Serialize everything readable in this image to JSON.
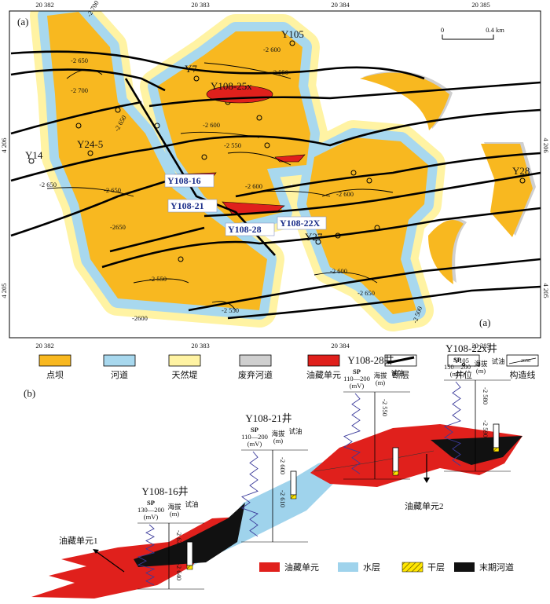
{
  "map": {
    "panel_label": "(a)",
    "corner_label": "(a)",
    "x_coords_top": [
      "20 382",
      "20 383",
      "20 384",
      "20 385"
    ],
    "x_coords_bottom": [
      "20 382",
      "20 383",
      "20 384",
      "20 385"
    ],
    "y_coords_left": [
      "4 206",
      "4 205"
    ],
    "y_coords_right": [
      "4 206",
      "4 205"
    ],
    "scale": {
      "start": "0",
      "end": "0.4 km"
    },
    "wells": [
      "Y105",
      "Y7",
      "Y108-25x",
      "Y24-5",
      "Y14",
      "Y28",
      "Y27"
    ],
    "key_wells": [
      "Y108-16",
      "Y108-21",
      "Y108-28",
      "Y108-22X"
    ],
    "contours": [
      "-2 600",
      "-2 550",
      "-2 650",
      "-2 700",
      "-2 700",
      "-2 650",
      "-2 600",
      "-2 550",
      "-2 650",
      "-2 650",
      "-2650",
      "-2 600",
      "-2 600",
      "-2 550",
      "-2600",
      "-2 550",
      "-2 600",
      "-2 650",
      "-2 500"
    ]
  },
  "legend": {
    "items": [
      "点坝",
      "河道",
      "天然堤",
      "废弃河道",
      "油藏单元",
      "断层",
      "井位",
      "构造线"
    ],
    "well_sample": "Y105",
    "contour_sample": "2650"
  },
  "section": {
    "panel_label": "(b)",
    "wells": [
      {
        "name": "Y108-16井",
        "sp": "SP",
        "sp_range": "130—200",
        "sp_unit": "(mV)",
        "elev": "海拔",
        "elev_unit": "(m)",
        "test": "试油",
        "depths": [
          "-2 630",
          "-2 640"
        ]
      },
      {
        "name": "Y108-21井",
        "sp": "SP",
        "sp_range": "110—200",
        "sp_unit": "(mV)",
        "elev": "海拔",
        "elev_unit": "(m)",
        "test": "试油",
        "depths": [
          "-2 600",
          "-2 610"
        ]
      },
      {
        "name": "Y108-28井",
        "sp": "SP",
        "sp_range": "110—200",
        "sp_unit": "(mV)",
        "elev": "海拔",
        "elev_unit": "(m)",
        "test": "试油",
        "depths": [
          "-2 550"
        ]
      },
      {
        "name": "Y108-22x井",
        "sp": "SP",
        "sp_range": "150—200",
        "sp_unit": "(mV)",
        "elev": "海拔",
        "elev_unit": "(m)",
        "test": "试油",
        "depths": [
          "-2 580",
          "-2 590"
        ]
      }
    ],
    "units": [
      "油藏单元1",
      "油藏单元2"
    ],
    "legend": [
      "油藏单元",
      "水层",
      "干层",
      "末期河道"
    ]
  }
}
